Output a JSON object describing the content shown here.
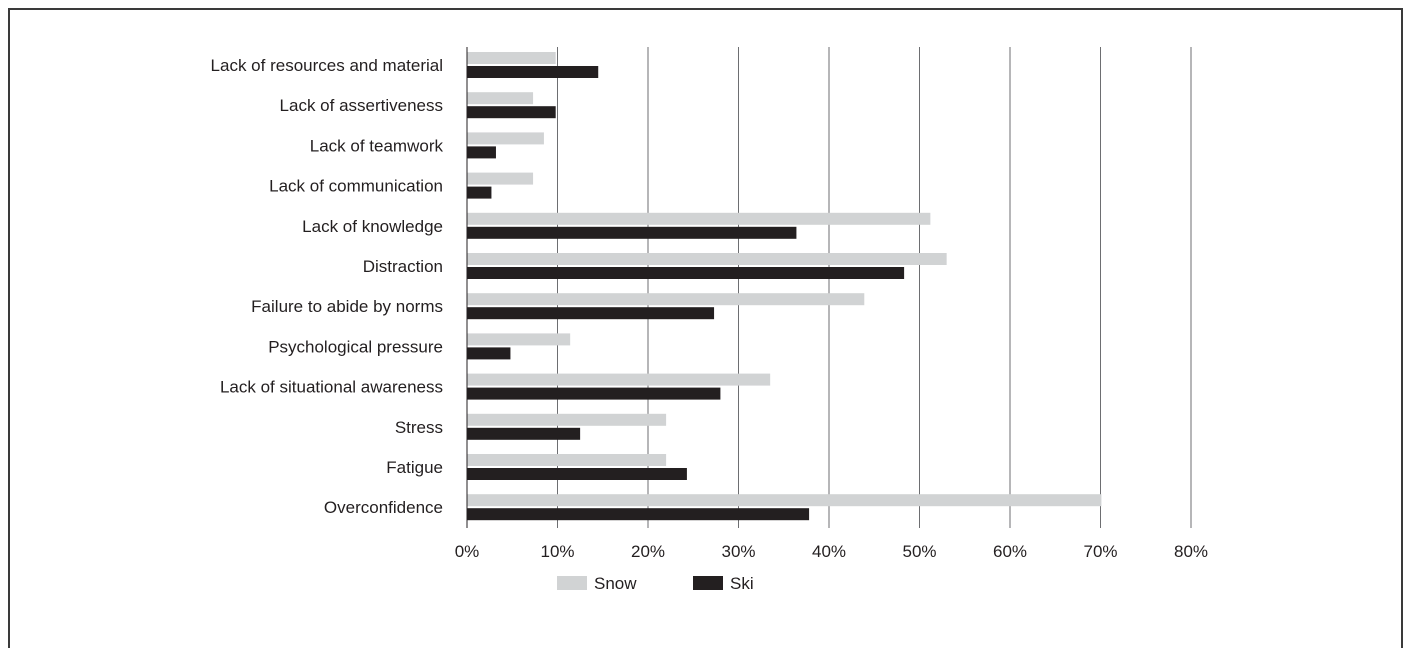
{
  "chart_data": {
    "type": "bar",
    "orientation": "horizontal",
    "categories": [
      "Lack of resources and material",
      "Lack of assertiveness",
      "Lack of teamwork",
      "Lack of communication",
      "Lack of knowledge",
      "Distraction",
      "Failure to abide by norms",
      "Psychological pressure",
      "Lack of situational awareness",
      "Stress",
      "Fatigue",
      "Overconfidence"
    ],
    "series": [
      {
        "name": "Snow",
        "color": "#d1d3d4",
        "values": [
          9.8,
          7.3,
          8.5,
          7.3,
          51.2,
          53.0,
          43.9,
          11.4,
          33.5,
          22.0,
          22.0,
          70.1
        ]
      },
      {
        "name": "Ski",
        "color": "#231f20",
        "values": [
          14.5,
          9.8,
          3.2,
          2.7,
          36.4,
          48.3,
          27.3,
          4.8,
          28.0,
          12.5,
          24.3,
          37.8
        ]
      }
    ],
    "xlim": [
      0,
      80
    ],
    "xticks": [
      "0%",
      "10%",
      "20%",
      "30%",
      "40%",
      "50%",
      "60%",
      "70%",
      "80%"
    ],
    "grid": true,
    "legend_position": "bottom"
  }
}
